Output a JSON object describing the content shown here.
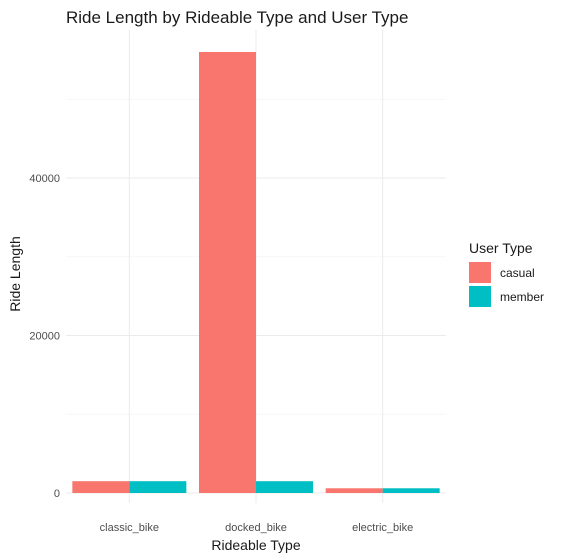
{
  "chart_data": {
    "type": "bar",
    "title": "Ride Length by Rideable Type and User Type",
    "xlabel": "Rideable Type",
    "ylabel": "Ride Length",
    "categories": [
      "classic_bike",
      "docked_bike",
      "electric_bike"
    ],
    "series": [
      {
        "name": "casual",
        "color": "#F8766D",
        "values": [
          1500,
          56000,
          600
        ]
      },
      {
        "name": "member",
        "color": "#00BFC4",
        "values": [
          1500,
          1500,
          600
        ]
      }
    ],
    "ylim": [
      0,
      60000
    ],
    "yticks": [
      0,
      20000,
      40000
    ],
    "grid": true,
    "legend": {
      "title": "User Type",
      "position": "right"
    }
  }
}
